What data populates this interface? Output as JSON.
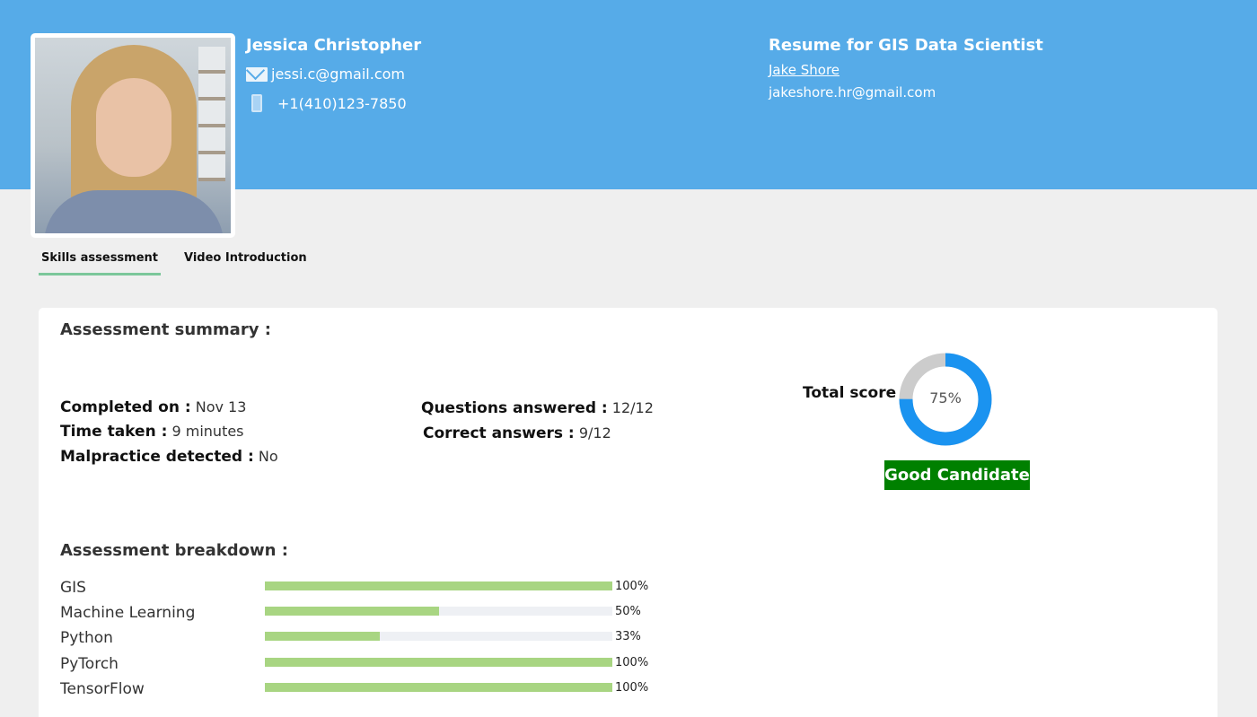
{
  "candidate": {
    "name": "Jessica Christopher",
    "email": "jessi.c@gmail.com",
    "phone": "+1(410)123-7850"
  },
  "resume": {
    "title": "Resume for GIS Data Scientist",
    "recruiter": "Jake Shore",
    "recruiter_email": "jakeshore.hr@gmail.com"
  },
  "tabs": [
    {
      "label": "Skills assessment",
      "active": true
    },
    {
      "label": "Video Introduction",
      "active": false
    }
  ],
  "summary": {
    "title": "Assessment summary :",
    "completed_label": "Completed on :",
    "completed_value": "Nov 13",
    "time_label": "Time taken :",
    "time_value": "9 minutes",
    "malpractice_label": "Malpractice detected :",
    "malpractice_value": "No",
    "questions_label": "Questions answered :",
    "questions_value": "12/12",
    "correct_label": "Correct answers :",
    "correct_value": "9/12",
    "total_label": "Total score",
    "total_text": "75%",
    "total_value": 75,
    "verdict": "Good Candidate"
  },
  "colors": {
    "header": "#56abe8",
    "donut_fill": "#1a93f0",
    "donut_rest": "#cccccc",
    "bar_fill": "#a8d582",
    "verdict_bg": "#008000",
    "tab_underline": "#7bc79a"
  },
  "breakdown": {
    "title": "Assessment breakdown :",
    "skills": [
      {
        "name": "GIS",
        "percent": 100,
        "label": "100%"
      },
      {
        "name": "Machine Learning",
        "percent": 50,
        "label": "50%"
      },
      {
        "name": "Python",
        "percent": 33,
        "label": "33%"
      },
      {
        "name": "PyTorch",
        "percent": 100,
        "label": "100%"
      },
      {
        "name": "TensorFlow",
        "percent": 100,
        "label": "100%"
      }
    ]
  }
}
